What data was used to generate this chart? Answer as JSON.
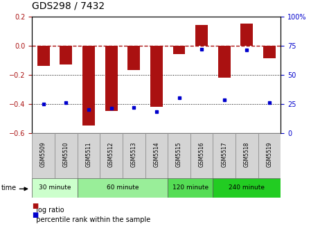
{
  "title": "GDS298 / 7432",
  "samples": [
    "GSM5509",
    "GSM5510",
    "GSM5511",
    "GSM5512",
    "GSM5513",
    "GSM5514",
    "GSM5515",
    "GSM5516",
    "GSM5517",
    "GSM5518",
    "GSM5519"
  ],
  "log_ratio": [
    -0.14,
    -0.13,
    -0.55,
    -0.45,
    -0.17,
    -0.42,
    -0.06,
    0.14,
    -0.22,
    0.15,
    -0.09
  ],
  "percentile_rank": [
    25,
    26,
    20,
    21,
    22,
    18,
    30,
    72,
    28,
    71,
    26
  ],
  "bar_color": "#aa1111",
  "dot_color": "#0000cc",
  "ylim_left": [
    -0.6,
    0.2
  ],
  "ylim_right": [
    0,
    100
  ],
  "yticks_left": [
    -0.6,
    -0.4,
    -0.2,
    0.0,
    0.2
  ],
  "yticks_right": [
    0,
    25,
    50,
    75,
    100
  ],
  "groups": [
    {
      "label": "30 minute",
      "count": 2,
      "color": "#ccffcc"
    },
    {
      "label": "60 minute",
      "count": 4,
      "color": "#99ee99"
    },
    {
      "label": "120 minute",
      "count": 2,
      "color": "#55dd55"
    },
    {
      "label": "240 minute",
      "count": 3,
      "color": "#22cc22"
    }
  ],
  "legend_log_ratio": "log ratio",
  "legend_percentile": "percentile rank within the sample",
  "time_label": "time"
}
